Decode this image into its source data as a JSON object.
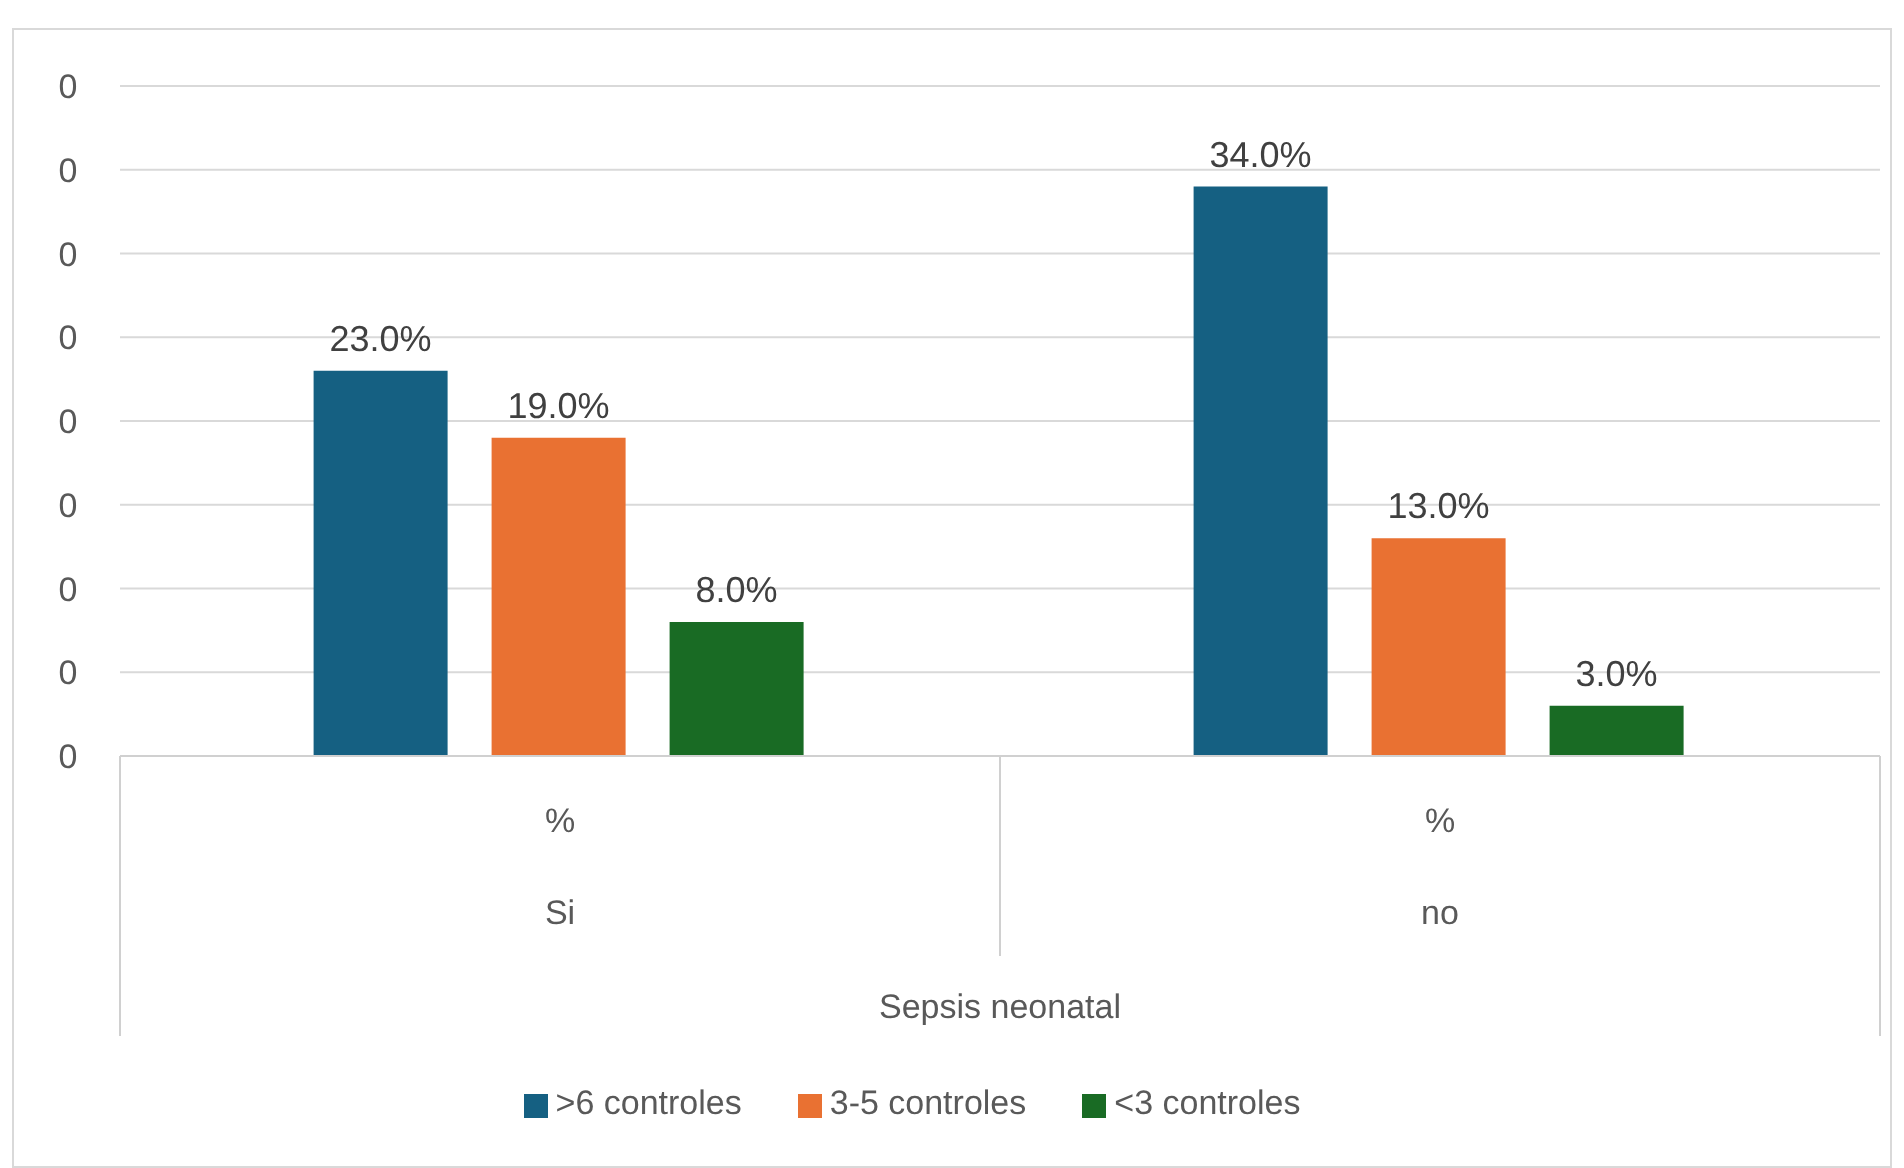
{
  "chart_data": {
    "type": "bar",
    "categories": [
      "Si",
      "no"
    ],
    "xlabel": "Sepsis neonatal",
    "annotations": [
      "%",
      "%"
    ],
    "series": [
      {
        "name": ">6 controles",
        "color": "#156082",
        "values": [
          0.23,
          0.34
        ],
        "value_labels": [
          "23.0%",
          "34.0%"
        ]
      },
      {
        "name": "3-5 controles",
        "color": "#e97132",
        "values": [
          0.19,
          0.13
        ],
        "value_labels": [
          "19.0%",
          "13.0%"
        ]
      },
      {
        "name": "<3 controles",
        "color": "#196b24",
        "values": [
          0.08,
          0.03
        ],
        "value_labels": [
          "8.0%",
          "3.0%"
        ]
      }
    ],
    "ylim": [
      0,
      0.4
    ],
    "yticks": [
      0,
      {
        "value": 0.05,
        "label": "0"
      },
      {
        "value": 0.1,
        "label": "0"
      },
      {
        "value": 0.15,
        "label": "0"
      },
      {
        "value": 0.2,
        "label": "0"
      },
      {
        "value": 0.25,
        "label": "0"
      },
      {
        "value": 0.3,
        "label": "0"
      },
      {
        "value": 0.35,
        "label": "0"
      },
      {
        "value": 0.4,
        "label": "0"
      }
    ],
    "grid": "y",
    "legend": "bottom"
  }
}
